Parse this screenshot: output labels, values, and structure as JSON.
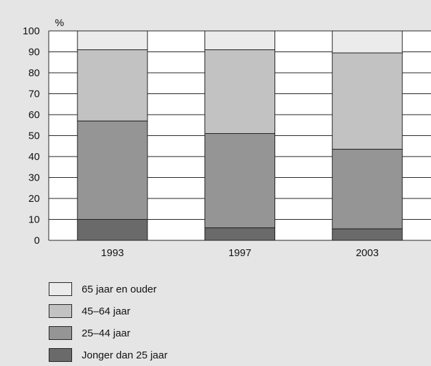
{
  "chart_data": {
    "type": "bar",
    "stacked": true,
    "ylabel": "%",
    "ylim": [
      0,
      100
    ],
    "yticks": [
      0,
      10,
      20,
      30,
      40,
      50,
      60,
      70,
      80,
      90,
      100
    ],
    "categories": [
      "1993",
      "1997",
      "2003"
    ],
    "series": [
      {
        "name": "Jonger dan 25 jaar",
        "color": "#6a6a6a",
        "values": [
          10,
          6,
          5.5
        ]
      },
      {
        "name": "25–44 jaar",
        "color": "#959595",
        "values": [
          47,
          45,
          38
        ]
      },
      {
        "name": "45–64 jaar",
        "color": "#c2c2c2",
        "values": [
          34,
          40,
          46
        ]
      },
      {
        "name": "65 jaar en ouder",
        "color": "#ebebeb",
        "values": [
          9,
          9,
          10.5
        ]
      }
    ],
    "legend_position": "bottom-left",
    "grid": "horizontal"
  }
}
